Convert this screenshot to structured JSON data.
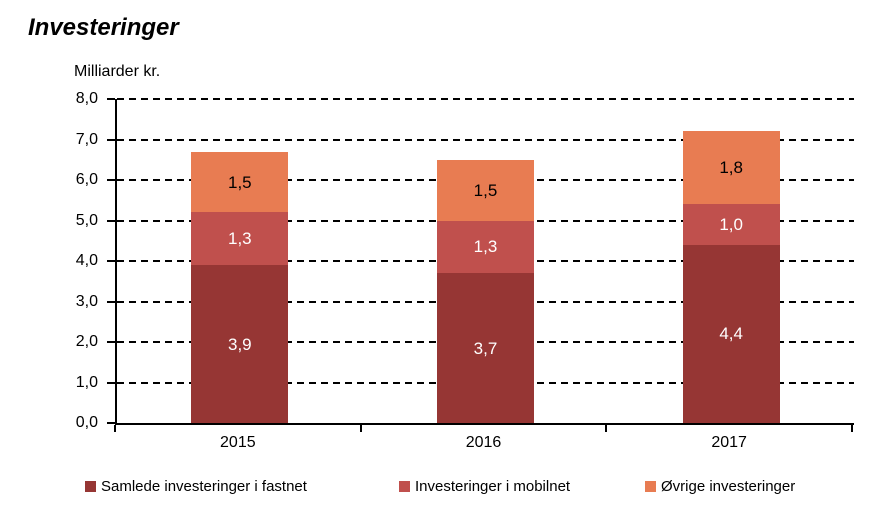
{
  "chart_data": {
    "type": "bar",
    "stacked": true,
    "title": "Investeringer",
    "ylabel": "Milliarder kr.",
    "categories": [
      "2015",
      "2016",
      "2017"
    ],
    "series": [
      {
        "name": "Samlede investeringer i fastnet",
        "values": [
          3.9,
          3.7,
          4.4
        ],
        "display_labels": [
          "3,9",
          "3,7",
          "4,4"
        ],
        "color": "#963634",
        "label_color": "#ffffff"
      },
      {
        "name": "Investeringer i mobilnet",
        "values": [
          1.3,
          1.3,
          1.0
        ],
        "display_labels": [
          "1,3",
          "1,3",
          "1,0"
        ],
        "color": "#c0504d",
        "label_color": "#ffffff"
      },
      {
        "name": "Øvrige investeringer",
        "values": [
          1.5,
          1.5,
          1.8
        ],
        "display_labels": [
          "1,5",
          "1,5",
          "1,8"
        ],
        "color": "#e87c52",
        "label_color": "#000000"
      }
    ],
    "ylim": [
      0,
      8
    ],
    "ytick_step": 1,
    "ytick_labels": [
      "0,0",
      "1,0",
      "2,0",
      "3,0",
      "4,0",
      "5,0",
      "6,0",
      "7,0",
      "8,0"
    ],
    "grid": "horizontal-dashed-black",
    "gridline_color": "#000000",
    "legend_position": "bottom",
    "axis_color": "#000000"
  }
}
